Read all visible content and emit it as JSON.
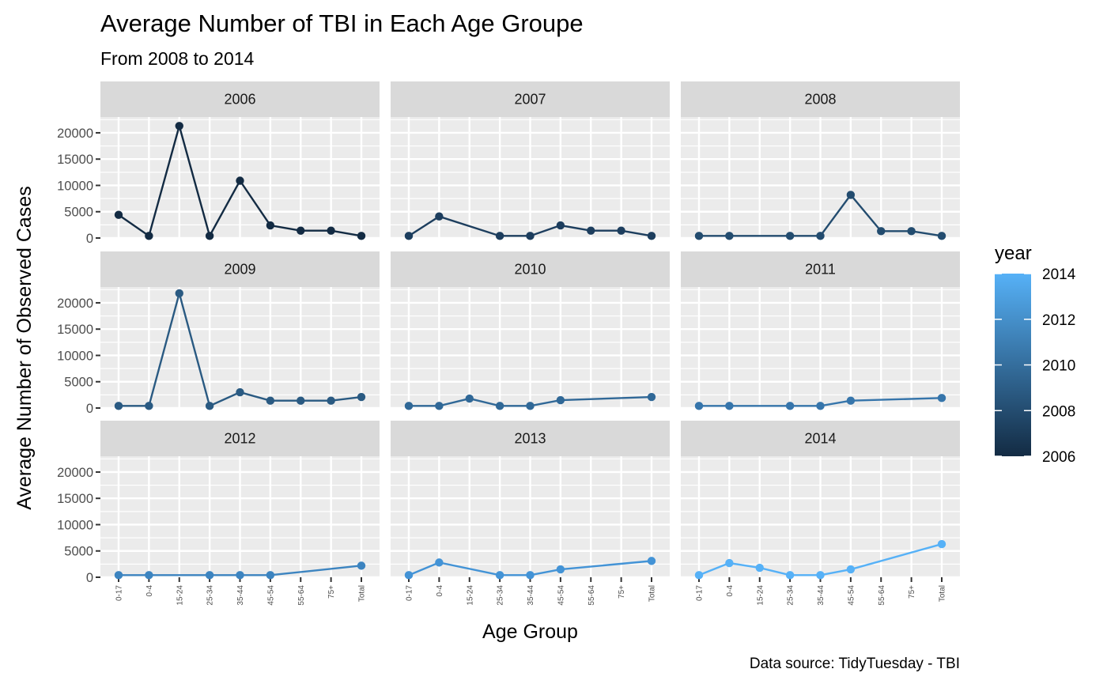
{
  "chart_data": {
    "type": "line",
    "title": "Average Number of TBI in Each Age Groupe",
    "subtitle": "From 2008 to 2014",
    "xlabel": "Age Group",
    "ylabel": "Average Number of Observed Cases",
    "caption": "Data source: TidyTuesday - TBI",
    "categories": [
      "0-17",
      "0-4",
      "15-24",
      "25-34",
      "35-44",
      "45-54",
      "55-64",
      "75+",
      "Total"
    ],
    "ylim": [
      0,
      23000
    ],
    "yticks": [
      0,
      5000,
      10000,
      15000,
      20000
    ],
    "ytick_labels": [
      "0",
      "5000",
      "10000",
      "15000",
      "20000"
    ],
    "grid": true,
    "facets": [
      {
        "label": "2006",
        "year": 2006,
        "color": "#132b43",
        "values": [
          4400,
          400,
          21300,
          400,
          10900,
          2400,
          1400,
          1400,
          400
        ]
      },
      {
        "label": "2007",
        "year": 2007,
        "color": "#1d3e5e",
        "values": [
          400,
          4100,
          null,
          400,
          400,
          2400,
          1400,
          1400,
          400
        ]
      },
      {
        "label": "2008",
        "year": 2008,
        "color": "#234c6f",
        "values": [
          400,
          400,
          null,
          400,
          400,
          8200,
          1300,
          1300,
          400
        ]
      },
      {
        "label": "2009",
        "year": 2009,
        "color": "#2a5a82",
        "values": [
          400,
          400,
          21800,
          400,
          3000,
          1400,
          1400,
          1400,
          2100
        ]
      },
      {
        "label": "2010",
        "year": 2010,
        "color": "#306897",
        "values": [
          400,
          400,
          1800,
          400,
          400,
          1500,
          null,
          null,
          2100
        ]
      },
      {
        "label": "2011",
        "year": 2011,
        "color": "#3675ab",
        "values": [
          400,
          400,
          null,
          400,
          400,
          1400,
          null,
          null,
          1900
        ]
      },
      {
        "label": "2012",
        "year": 2012,
        "color": "#3c84c0",
        "values": [
          400,
          400,
          null,
          400,
          400,
          400,
          null,
          null,
          2200
        ]
      },
      {
        "label": "2013",
        "year": 2013,
        "color": "#4393d6",
        "values": [
          400,
          2800,
          null,
          400,
          400,
          1500,
          null,
          null,
          3100
        ]
      },
      {
        "label": "2014",
        "year": 2014,
        "color": "#56b1f7",
        "values": [
          400,
          2700,
          1800,
          400,
          400,
          1500,
          null,
          null,
          6300
        ]
      }
    ],
    "legend": {
      "title": "year",
      "position": "right",
      "ticks": [
        2006,
        2008,
        2010,
        2012,
        2014
      ],
      "tick_labels": [
        "2006",
        "2008",
        "2010",
        "2012",
        "2014"
      ],
      "low_color": "#132b43",
      "high_color": "#56b1f7"
    },
    "colors": {
      "panel_background": "#ebebeb",
      "strip_background": "#d9d9d9",
      "grid": "#ffffff"
    }
  }
}
